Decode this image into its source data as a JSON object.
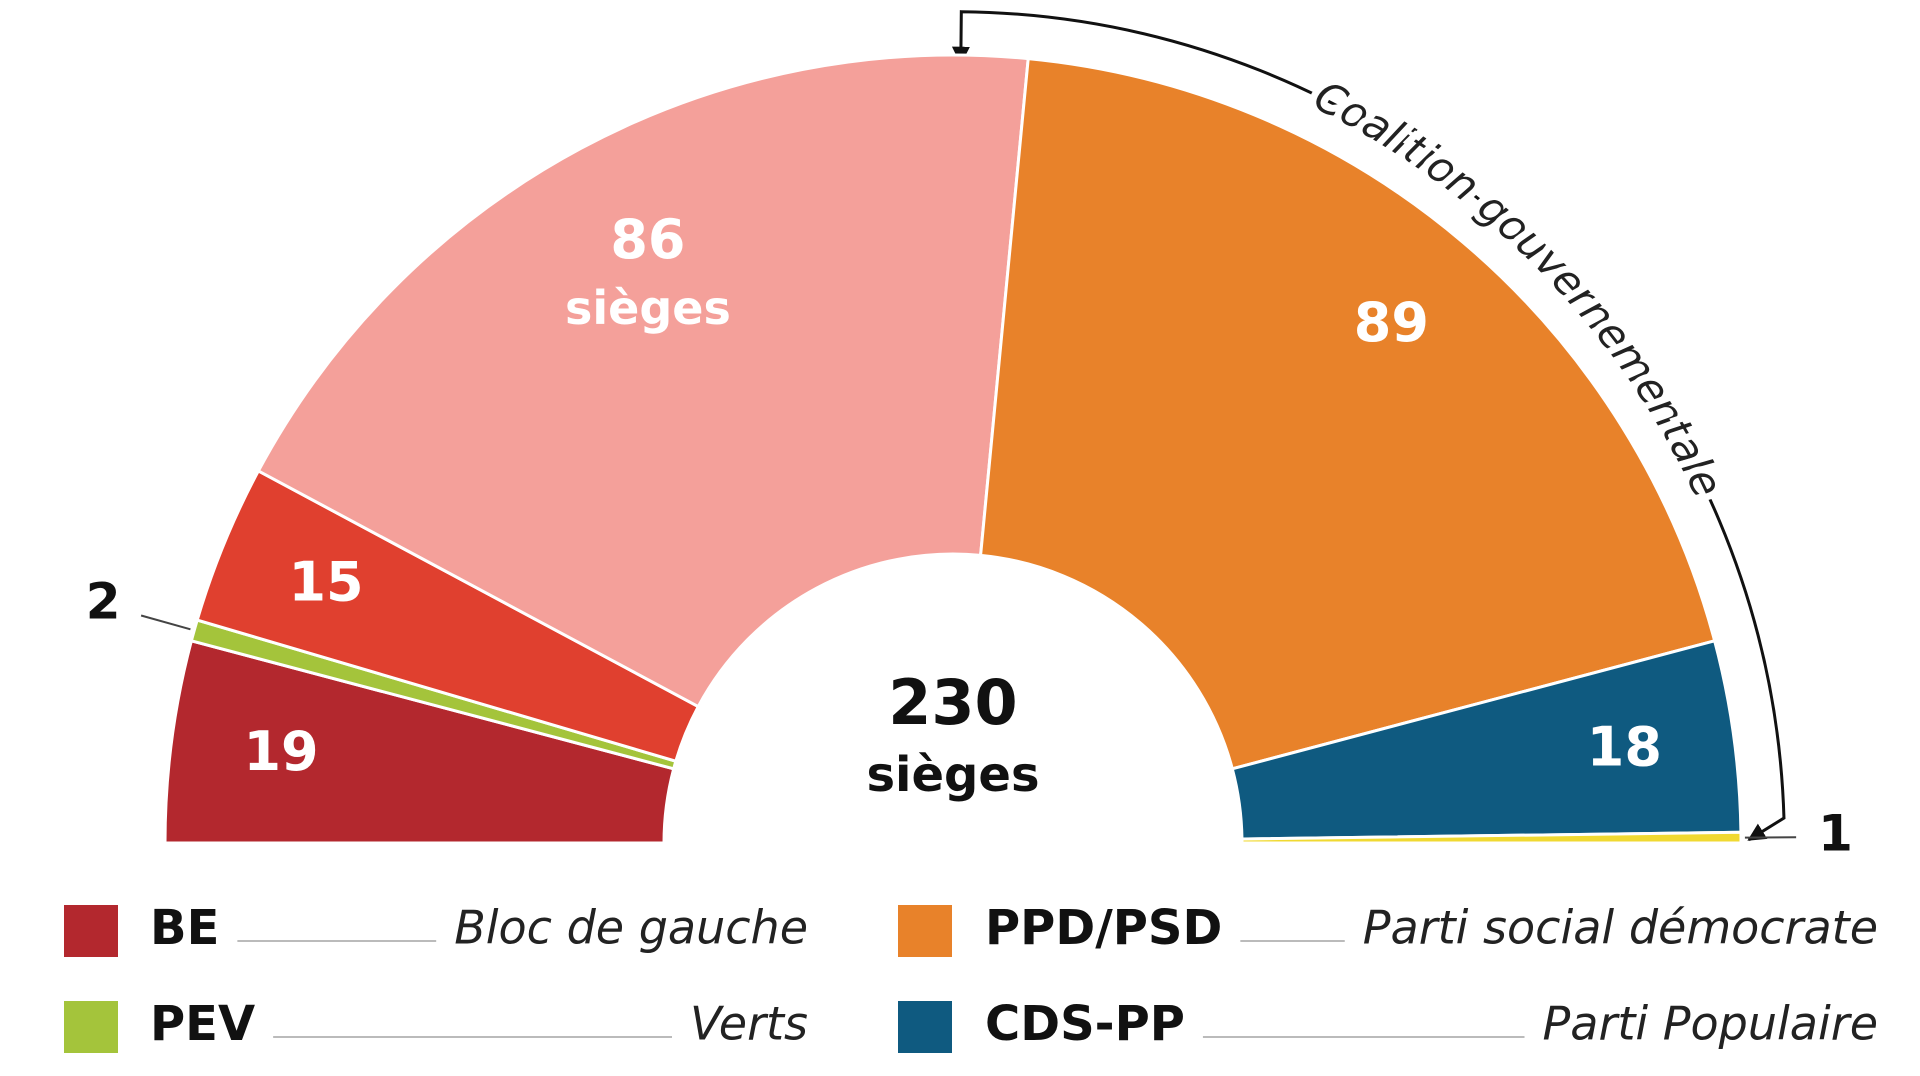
{
  "chart_data": {
    "type": "semi-donut",
    "categories": [
      "BE",
      "PEV",
      null,
      null,
      "PPD/PSD",
      "CDS-PP",
      null
    ],
    "descriptions": [
      "Bloc de gauche",
      "Verts",
      null,
      null,
      "Parti social démocrate",
      "Parti Populaire",
      null
    ],
    "values": [
      19,
      2,
      15,
      86,
      89,
      18,
      1
    ],
    "colors": [
      "#b3282e",
      "#a4c43b",
      "#e0402f",
      "#f4a09a",
      "#e8822a",
      "#0f5a80",
      "#f0d932"
    ],
    "seat_label": "sièges",
    "total": 230,
    "total_label": "sièges",
    "annotation": "Coalition gouvernementale"
  }
}
